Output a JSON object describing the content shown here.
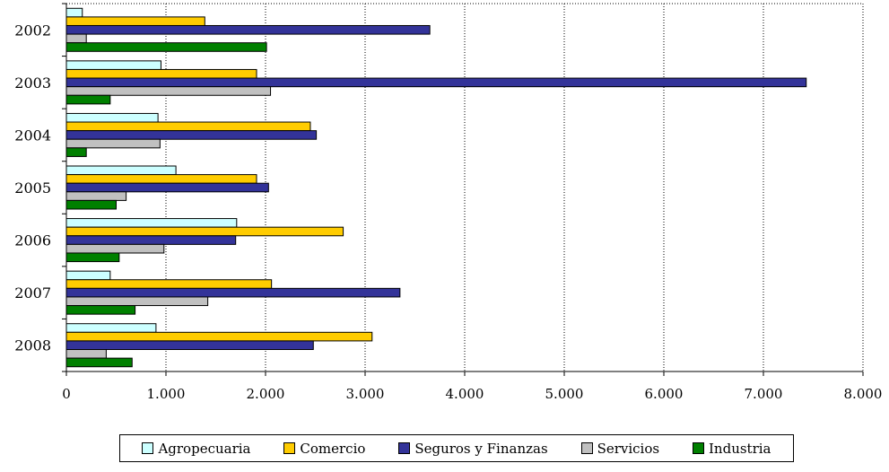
{
  "chart_data": {
    "type": "bar",
    "orientation": "horizontal",
    "categories": [
      "2002",
      "2003",
      "2004",
      "2005",
      "2006",
      "2007",
      "2008"
    ],
    "series": [
      {
        "name": "Agropecuaria",
        "color": "#CCFFFF",
        "values": [
          160,
          950,
          920,
          1100,
          1710,
          440,
          900
        ]
      },
      {
        "name": "Comercio",
        "color": "#FFCC00",
        "values": [
          1390,
          1910,
          2450,
          1910,
          2780,
          2060,
          3070
        ]
      },
      {
        "name": "Seguros y Finanzas",
        "color": "#333399",
        "values": [
          3650,
          7430,
          2510,
          2030,
          1700,
          3350,
          2480
        ]
      },
      {
        "name": "Servicios",
        "color": "#C0C0C0",
        "values": [
          200,
          2050,
          940,
          600,
          980,
          1420,
          400
        ]
      },
      {
        "name": "Industria",
        "color": "#008000",
        "values": [
          2010,
          440,
          200,
          500,
          530,
          690,
          660
        ]
      }
    ],
    "xlim": [
      0,
      8000
    ],
    "xticks": [
      0,
      1000,
      2000,
      3000,
      4000,
      5000,
      6000,
      7000,
      8000
    ],
    "xtick_labels": [
      "0",
      "1.000",
      "2.000",
      "3.000",
      "4.000",
      "5.000",
      "6.000",
      "7.000",
      "8.000"
    ],
    "grid": "vertical dotted",
    "legend_position": "bottom",
    "title": "",
    "xlabel": "",
    "ylabel": ""
  }
}
